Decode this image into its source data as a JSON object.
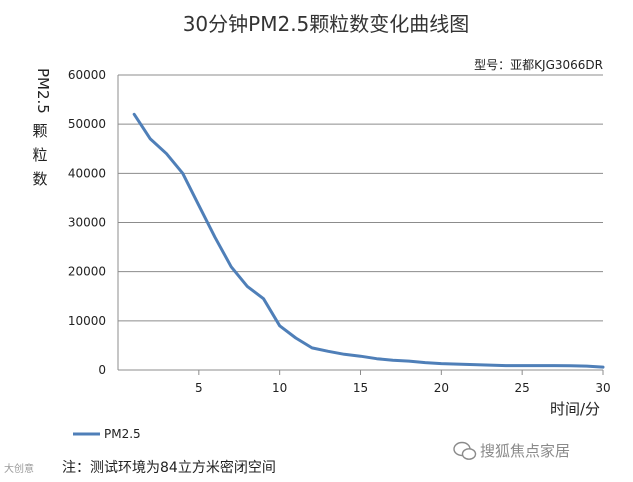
{
  "chart_data": {
    "type": "line",
    "title": "30分钟PM2.5颗粒数变化曲线图",
    "subtitle": "型号：亚都KJG3066DR",
    "xlabel": "时间/分",
    "ylabel": "PM2.5颗粒数",
    "xlim": [
      0,
      30
    ],
    "ylim": [
      0,
      60000
    ],
    "x_ticks": [
      5,
      10,
      15,
      20,
      25,
      30
    ],
    "y_ticks": [
      0,
      10000,
      20000,
      30000,
      40000,
      50000,
      60000
    ],
    "grid": "horizontal",
    "legend_position": "bottom-left",
    "series": [
      {
        "name": "PM2.5",
        "color": "#4f7fb8",
        "x": [
          1,
          2,
          3,
          4,
          5,
          6,
          7,
          8,
          9,
          10,
          11,
          12,
          13,
          14,
          15,
          16,
          17,
          18,
          19,
          20,
          21,
          22,
          23,
          24,
          25,
          26,
          27,
          28,
          29,
          30
        ],
        "values": [
          52000,
          47000,
          44000,
          40000,
          33500,
          27000,
          21000,
          17000,
          14500,
          9000,
          6500,
          4500,
          3800,
          3200,
          2800,
          2300,
          2000,
          1800,
          1500,
          1300,
          1200,
          1100,
          1000,
          900,
          900,
          900,
          900,
          850,
          800,
          600
        ]
      }
    ]
  },
  "footer": {
    "note": "注：测试环境为84立方米密闭空间",
    "watermark_right": "搜狐焦点家居",
    "watermark_left": "大创意"
  }
}
